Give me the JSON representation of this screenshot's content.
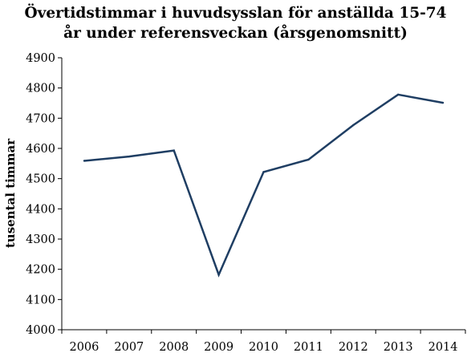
{
  "chart_data": {
    "type": "line",
    "title_lines": [
      "Övertidstimmar i huvudsysslan för anställda 15-74",
      "år under referensveckan (årsgenomsnitt)"
    ],
    "xlabel": "",
    "ylabel": "tusental timmar",
    "categories": [
      "2006",
      "2007",
      "2008",
      "2009",
      "2010",
      "2011",
      "2012",
      "2013",
      "2014"
    ],
    "series": [
      {
        "values": [
          4559,
          4573,
          4593,
          4182,
          4522,
          4563,
          4677,
          4778,
          4751
        ],
        "color": "#1f3e63"
      }
    ],
    "ylim": [
      4000,
      4900
    ],
    "yticks": [
      4000,
      4100,
      4200,
      4300,
      4400,
      4500,
      4600,
      4700,
      4800,
      4900
    ],
    "grid": false,
    "legend": "none"
  }
}
